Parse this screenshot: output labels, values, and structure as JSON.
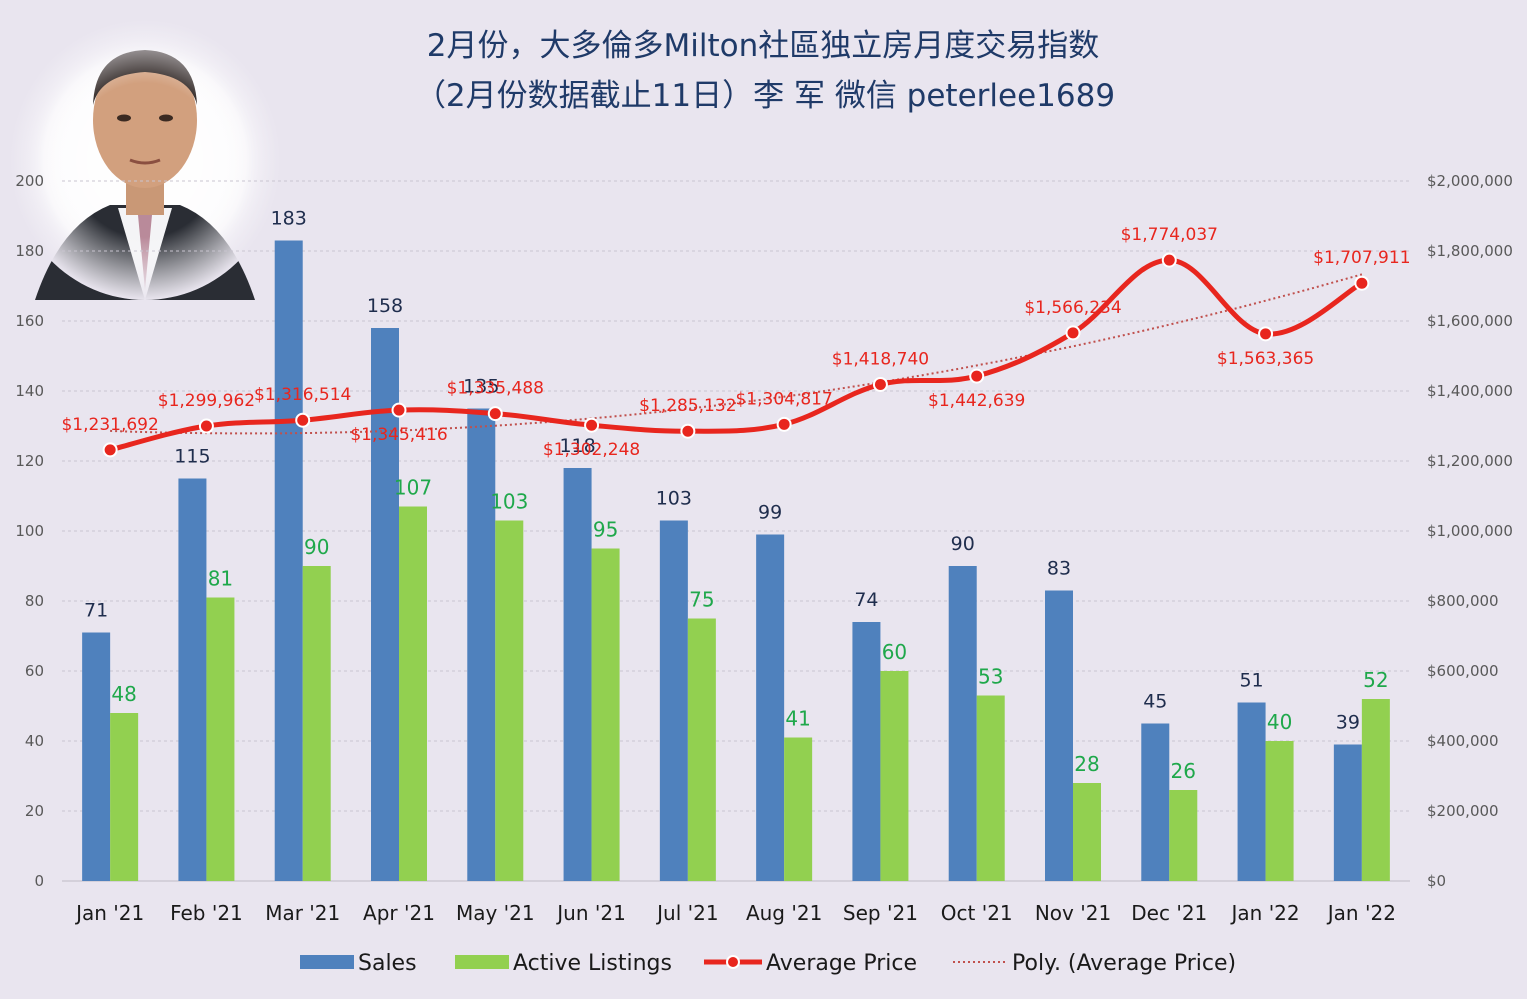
{
  "chart_data": {
    "type": "bar",
    "title": "2月份，大多倫多Milton社區独立房月度交易指数",
    "subtitle": "（2月份数据截止11日）李 军  微信  peterlee1689",
    "categories": [
      "Jan '21",
      "Feb '21",
      "Mar '21",
      "Apr '21",
      "May '21",
      "Jun '21",
      "Jul '21",
      "Aug '21",
      "Sep '21",
      "Oct '21",
      "Nov '21",
      "Dec '21",
      "Jan '22",
      "Jan '22"
    ],
    "series": [
      {
        "name": "Sales",
        "type": "bar",
        "axis": "left",
        "color": "#4F81BD",
        "values": [
          71,
          115,
          183,
          158,
          135,
          118,
          103,
          99,
          74,
          90,
          83,
          45,
          51,
          39
        ]
      },
      {
        "name": "Active Listings",
        "type": "bar",
        "axis": "left",
        "color": "#92D050",
        "values": [
          48,
          81,
          90,
          107,
          103,
          95,
          75,
          41,
          60,
          53,
          28,
          26,
          40,
          52
        ]
      },
      {
        "name": "Average Price",
        "type": "line",
        "axis": "right",
        "color": "#E8261E",
        "values": [
          1231692,
          1299962,
          1316514,
          1345416,
          1335488,
          1302248,
          1285132,
          1304817,
          1418740,
          1442639,
          1566234,
          1774037,
          1563365,
          1707911
        ],
        "labels": [
          "$1,231,692",
          "$1,299,962",
          "$1,316,514",
          "$1,345,416",
          "$1,335,488",
          "$1,302,248",
          "$1,285,132",
          "$1,304,817",
          "$1,418,740",
          "$1,442,639",
          "$1,566,234",
          "$1,774,037",
          "$1,563,365",
          "$1,707,911"
        ]
      },
      {
        "name": "Poly. (Average Price)",
        "type": "trendline",
        "axis": "right",
        "color": "#C0504D"
      }
    ],
    "yleft": {
      "min": 0,
      "max": 200,
      "step": 20,
      "ticks": [
        "0",
        "20",
        "40",
        "60",
        "80",
        "100",
        "120",
        "140",
        "160",
        "180",
        "200"
      ]
    },
    "yright": {
      "min": 0,
      "max": 2000000,
      "step": 200000,
      "ticks": [
        "$0",
        "$200,000",
        "$400,000",
        "$600,000",
        "$800,000",
        "$1,000,000",
        "$1,200,000",
        "$1,400,000",
        "$1,600,000",
        "$1,800,000",
        "$2,000,000"
      ]
    },
    "grid": true,
    "legend": "bottom"
  }
}
